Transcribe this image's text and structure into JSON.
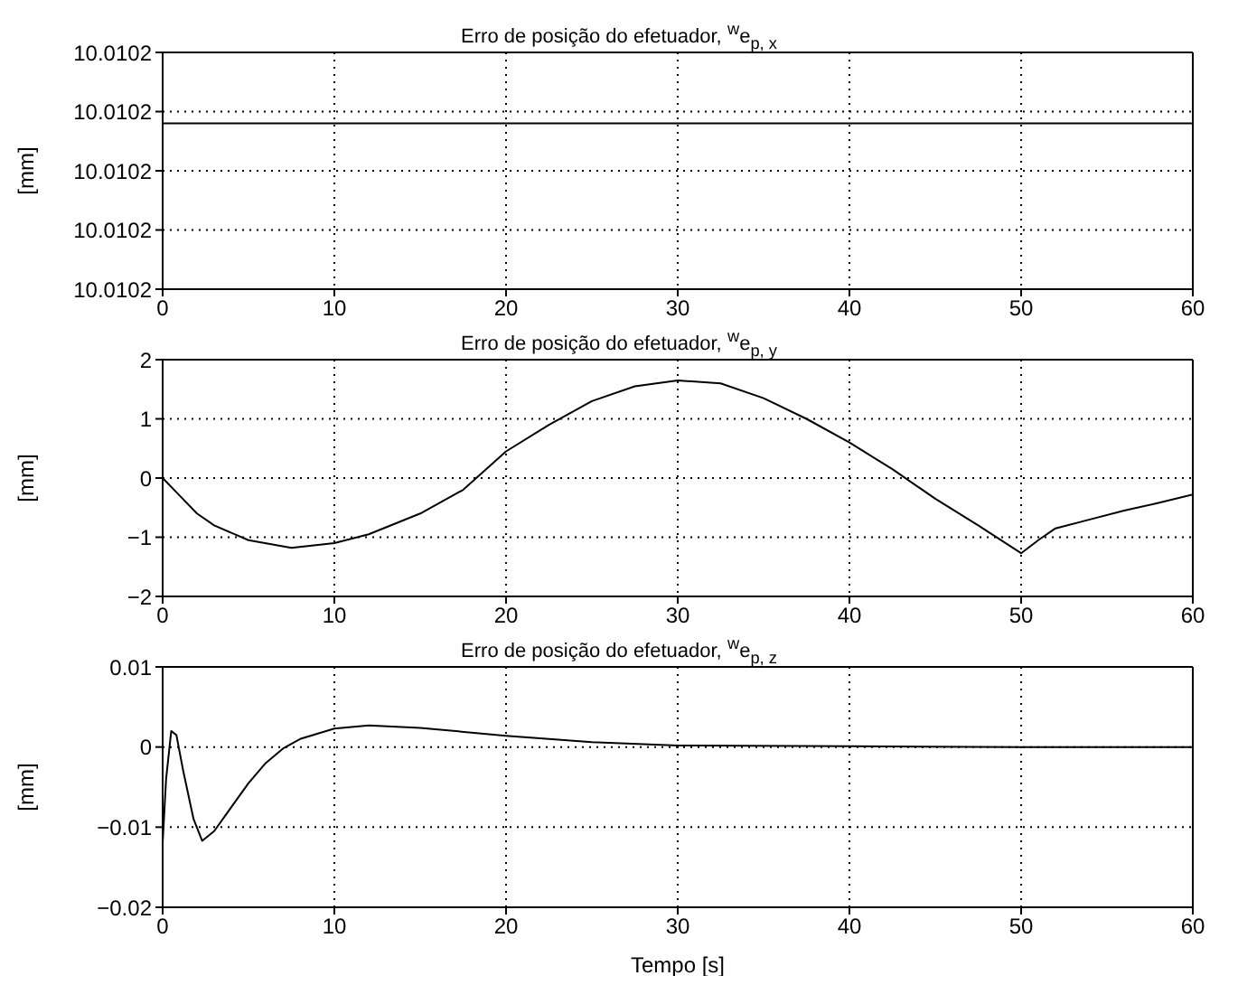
{
  "chart_data": [
    {
      "type": "line",
      "title": "Erro de posição do efetuador, $^{w}$e$_{p, x}$",
      "ylabel": "[mm]",
      "xlim": [
        0,
        60
      ],
      "xticks": [
        0,
        10,
        20,
        30,
        40,
        50,
        60
      ],
      "ylim": [
        10.01018,
        10.01022
      ],
      "yticks": [
        {
          "value": 10.01018,
          "label": "10.0102"
        },
        {
          "value": 10.01019,
          "label": "10.0102"
        },
        {
          "value": 10.0102,
          "label": "10.0102"
        },
        {
          "value": 10.01021,
          "label": "10.0102"
        },
        {
          "value": 10.01022,
          "label": "10.0102"
        }
      ],
      "grid": true,
      "legend": false,
      "marker": "none",
      "line_style": "solid",
      "series": [
        {
          "color": "#000000",
          "x": [
            0,
            60
          ],
          "values": [
            10.010208,
            10.010208
          ]
        }
      ]
    },
    {
      "type": "line",
      "title": "Erro de posição do efetuador, $^{w}$e$_{p, y}$",
      "ylabel": "[mm]",
      "xlim": [
        0,
        60
      ],
      "xticks": [
        0,
        10,
        20,
        30,
        40,
        50,
        60
      ],
      "ylim": [
        -2,
        2
      ],
      "yticks": [
        -2,
        -1,
        0,
        1,
        2
      ],
      "grid": true,
      "legend": false,
      "marker": "none",
      "line_style": "solid",
      "series": [
        {
          "color": "#000000",
          "x": [
            0,
            1,
            2,
            3,
            5,
            7.5,
            10,
            12,
            15,
            17.5,
            20,
            22.5,
            25,
            27.5,
            30,
            32.5,
            35,
            37.5,
            40,
            42.5,
            45,
            47.5,
            50,
            51,
            52,
            54,
            56,
            58,
            60
          ],
          "values": [
            0,
            -0.3,
            -0.6,
            -0.8,
            -1.05,
            -1.18,
            -1.1,
            -0.95,
            -0.6,
            -0.2,
            0.45,
            0.9,
            1.3,
            1.55,
            1.65,
            1.6,
            1.35,
            1.0,
            0.6,
            0.15,
            -0.35,
            -0.8,
            -1.27,
            -1.05,
            -0.85,
            -0.7,
            -0.55,
            -0.42,
            -0.28
          ]
        }
      ]
    },
    {
      "type": "line",
      "title": "Erro de posição do efetuador, $^{w}$e$_{p, z}$",
      "ylabel": "[mm]",
      "xlabel": "Tempo [s]",
      "xlim": [
        0,
        60
      ],
      "xticks": [
        0,
        10,
        20,
        30,
        40,
        50,
        60
      ],
      "ylim": [
        -0.02,
        0.01
      ],
      "yticks": [
        -0.02,
        -0.01,
        0,
        0.01
      ],
      "grid": true,
      "legend": false,
      "marker": "none",
      "line_style": "solid",
      "series": [
        {
          "color": "#000000",
          "x": [
            0,
            0.2,
            0.5,
            0.8,
            1.2,
            1.8,
            2.3,
            3,
            4,
            5,
            6,
            7,
            8,
            10,
            12,
            15,
            20,
            25,
            30,
            40,
            50,
            60
          ],
          "values": [
            -0.012,
            -0.004,
            0.002,
            0.0015,
            -0.003,
            -0.009,
            -0.0117,
            -0.0105,
            -0.0075,
            -0.0045,
            -0.002,
            -0.0002,
            0.001,
            0.0023,
            0.0027,
            0.0024,
            0.0014,
            0.0006,
            0.0002,
            0.0001,
            0,
            0
          ]
        }
      ]
    }
  ]
}
